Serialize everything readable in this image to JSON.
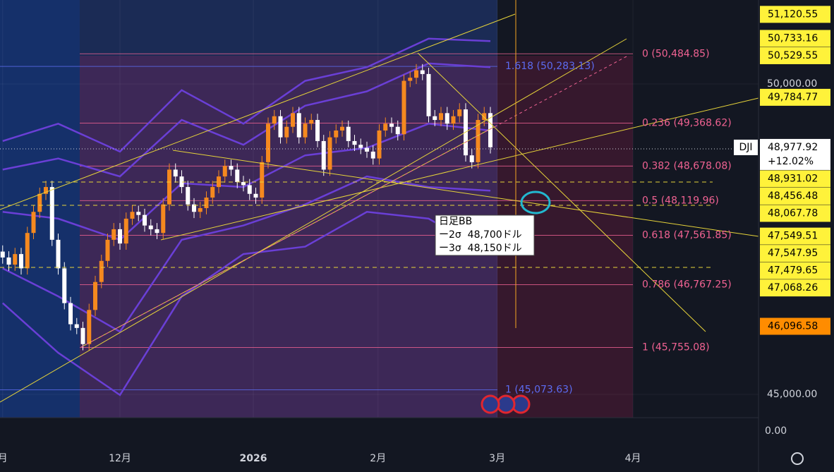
{
  "chart_data": {
    "type": "candlestick",
    "x": [
      -19,
      -18,
      -17,
      -16,
      -15,
      -14,
      -13,
      -12,
      -11,
      -10,
      -9,
      -8,
      -7,
      -6,
      -5,
      -4,
      -3,
      -2,
      -1,
      0,
      1,
      2,
      3,
      4,
      5,
      6,
      7,
      8,
      9,
      10,
      11,
      12,
      13,
      14,
      15,
      16,
      17,
      18,
      19,
      20,
      21,
      22,
      23,
      24,
      25,
      26,
      27,
      28,
      29,
      30,
      31,
      32,
      33,
      34,
      35,
      36,
      37,
      38,
      39,
      40,
      41,
      42,
      43,
      44,
      45,
      46,
      47,
      48,
      49,
      50,
      51,
      52,
      53,
      54,
      55,
      56,
      57,
      58,
      59,
      60
    ],
    "open": [
      47300,
      47205,
      47090,
      47260,
      47030,
      47600,
      47940,
      48230,
      48340,
      47490,
      47030,
      46470,
      46130,
      46070,
      45810,
      46360,
      46810,
      47150,
      47490,
      47660,
      47430,
      47830,
      47940,
      47890,
      47720,
      47660,
      47600,
      48060,
      48620,
      48510,
      48340,
      48060,
      47940,
      48000,
      48170,
      48340,
      48510,
      48680,
      48620,
      48420,
      48370,
      48230,
      48170,
      48740,
      49360,
      49480,
      49140,
      49310,
      49530,
      49140,
      49360,
      49420,
      49080,
      48620,
      49140,
      49250,
      49310,
      49080,
      49020,
      48970,
      48910,
      48800,
      49250,
      49360,
      49310,
      49190,
      50050,
      50100,
      50220,
      50160,
      49480,
      49420,
      49530,
      49360,
      49480,
      49590,
      48850,
      48740,
      49420,
      49530
    ],
    "high": [
      47400,
      47305,
      47360,
      47360,
      47700,
      48040,
      48330,
      48440,
      48440,
      47590,
      47130,
      46570,
      46230,
      46170,
      46460,
      46910,
      47250,
      47590,
      47760,
      47760,
      47930,
      48040,
      48040,
      47990,
      47820,
      47760,
      48160,
      48720,
      48720,
      48610,
      48440,
      48160,
      48100,
      48270,
      48440,
      48610,
      48780,
      48780,
      48720,
      48520,
      48470,
      48330,
      48840,
      49460,
      49580,
      49580,
      49410,
      49630,
      49630,
      49460,
      49520,
      49520,
      49180,
      49240,
      49350,
      49410,
      49410,
      49180,
      49120,
      49070,
      49010,
      49350,
      49460,
      49460,
      49410,
      50150,
      50200,
      50320,
      50320,
      50260,
      49580,
      49630,
      49630,
      49580,
      49690,
      49690,
      48950,
      49520,
      49630,
      49630
    ],
    "low": [
      47105,
      46990,
      46990,
      46930,
      46930,
      47500,
      47840,
      48130,
      47390,
      46930,
      46370,
      46030,
      45970,
      45710,
      45710,
      46260,
      46710,
      47050,
      47390,
      47330,
      47330,
      47730,
      47790,
      47620,
      47560,
      47500,
      47500,
      47960,
      48410,
      48240,
      47960,
      47840,
      47840,
      47900,
      48070,
      48240,
      48410,
      48520,
      48320,
      48270,
      48130,
      48070,
      48070,
      48640,
      49260,
      49040,
      49040,
      49210,
      49040,
      49040,
      49260,
      48980,
      48520,
      48520,
      49040,
      49150,
      48980,
      48920,
      48870,
      48810,
      48700,
      48700,
      49150,
      49210,
      49090,
      49090,
      49950,
      50000,
      50060,
      49380,
      49320,
      49320,
      49260,
      49260,
      49380,
      48750,
      48640,
      48640,
      49320,
      48880
    ],
    "close": [
      47205,
      47090,
      47260,
      47030,
      47600,
      47940,
      48230,
      48340,
      47490,
      47030,
      46470,
      46130,
      46070,
      45810,
      46360,
      46810,
      47150,
      47490,
      47660,
      47430,
      47830,
      47940,
      47890,
      47720,
      47660,
      47600,
      48060,
      48620,
      48510,
      48340,
      48060,
      47940,
      48000,
      48170,
      48340,
      48510,
      48680,
      48620,
      48420,
      48370,
      48230,
      48170,
      48740,
      49360,
      49480,
      49140,
      49310,
      49530,
      49140,
      49360,
      49420,
      49080,
      48620,
      49140,
      49250,
      49310,
      49080,
      49020,
      48970,
      48910,
      48800,
      49250,
      49360,
      49310,
      49190,
      50050,
      50100,
      50220,
      50160,
      49480,
      49420,
      49530,
      49360,
      49480,
      49590,
      48850,
      48740,
      49420,
      49530,
      48980
    ],
    "up_color": "#f5891f",
    "down_color": "#ffffff",
    "xlim": [
      -19.43,
      103.43
    ],
    "xticks": [
      {
        "value": -19,
        "label": "月"
      },
      {
        "value": 0,
        "label": "12月"
      },
      {
        "value": 21.6,
        "label": "2026"
      },
      {
        "value": 41.8,
        "label": "2月"
      },
      {
        "value": 61.1,
        "label": "3月"
      },
      {
        "value": 83.1,
        "label": "4月"
      }
    ],
    "ylim": [
      44625,
      51352
    ],
    "yticks": [
      {
        "value": 50000,
        "label": "50,000.00"
      },
      {
        "value": 45000,
        "label": "45,000.00"
      }
    ],
    "lower_pane_label": "0.00",
    "bands": {
      "x": [
        -19,
        -10,
        0,
        10,
        20,
        30,
        40,
        50,
        60
      ],
      "color": "#6a3fd6",
      "series": [
        {
          "values": [
            49080,
            49360,
            48910,
            49900,
            49360,
            50050,
            50270,
            50730,
            50690
          ]
        },
        {
          "values": [
            48620,
            48800,
            48510,
            49420,
            49020,
            49650,
            49880,
            50330,
            50270
          ]
        },
        {
          "values": [
            47940,
            47830,
            47490,
            48400,
            48340,
            48850,
            48970,
            49360,
            49250
          ]
        },
        {
          "values": [
            47030,
            46580,
            46010,
            47490,
            47720,
            48060,
            48510,
            48340,
            48280
          ]
        },
        {
          "values": [
            46470,
            45670,
            44990,
            46580,
            47260,
            47380,
            47940,
            47830,
            47260
          ]
        }
      ]
    },
    "fib": {
      "color": "#f06292",
      "levels": [
        {
          "value": 50484.85,
          "label": "0 (50,484.85)"
        },
        {
          "value": 49368.62,
          "label": "0.236 (49,368.62)"
        },
        {
          "value": 48678.08,
          "label": "0.382 (48,678.08)"
        },
        {
          "value": 48119.96,
          "label": "0.5 (48,119.96)"
        },
        {
          "value": 47561.85,
          "label": "0.618 (47,561.85)"
        },
        {
          "value": 46767.25,
          "label": "0.786 (46,767.25)"
        },
        {
          "value": 45755.08,
          "label": "1 (45,755.08)"
        }
      ]
    },
    "fib_ext": {
      "color": "#5c6bf0",
      "levels": [
        {
          "value": 50283.13,
          "label": "1.618 (50,283.13)"
        },
        {
          "value": 45073.63,
          "label": "1 (45,073.63)"
        }
      ]
    },
    "ticker": "DJI",
    "last_price": {
      "value": 48977.92,
      "label": "48,977.92"
    },
    "change": "+12.02%",
    "price_labels": [
      {
        "value": 51120.55,
        "label": "51,120.55",
        "color": "#fff23a"
      },
      {
        "value": 50733.16,
        "label": "50,733.16",
        "color": "#fff23a"
      },
      {
        "value": 50529.55,
        "label": "50,529.55",
        "color": "#fff23a"
      },
      {
        "value": 49784.77,
        "label": "49,784.77",
        "color": "#fff23a"
      },
      {
        "value": 48931.02,
        "label": "48,931.02",
        "color": "#fff23a"
      },
      {
        "value": 48456.48,
        "label": "48,456.48",
        "color": "#fff23a"
      },
      {
        "value": 48067.78,
        "label": "48,067.78",
        "color": "#fff23a"
      },
      {
        "value": 47549.51,
        "label": "47,549.51",
        "color": "#fff23a"
      },
      {
        "value": 47547.95,
        "label": "47,547.95",
        "color": "#fff23a"
      },
      {
        "value": 47479.65,
        "label": "47,479.65",
        "color": "#fff23a"
      },
      {
        "value": 47068.26,
        "label": "47,068.26",
        "color": "#fff23a"
      },
      {
        "value": 46096.58,
        "label": "46,096.58",
        "color": "#ff8c00"
      }
    ],
    "annotation": [
      "日足BB",
      "ー2σ  48,700ドル",
      "ー3σ  48,150ドル"
    ]
  }
}
